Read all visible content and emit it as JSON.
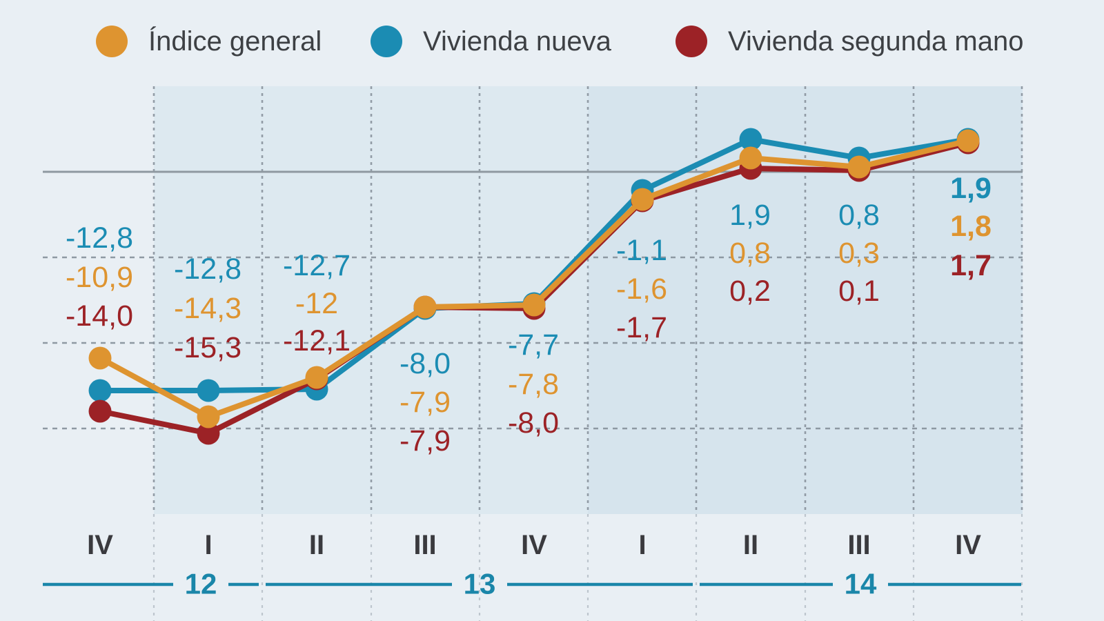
{
  "legend": {
    "items": [
      {
        "label": "Índice general",
        "color": "#de9430"
      },
      {
        "label": "Vivienda nueva",
        "color": "#1b8cb3"
      },
      {
        "label": "Vivienda segunda mano",
        "color": "#9c2226"
      }
    ]
  },
  "chart_data": {
    "type": "line",
    "title": "",
    "quarters": [
      "IV",
      "I",
      "II",
      "III",
      "IV",
      "I",
      "II",
      "III",
      "IV"
    ],
    "years": [
      {
        "label": "12",
        "num_quarters": 1
      },
      {
        "label": "13",
        "num_quarters": 4
      },
      {
        "label": "14",
        "num_quarters": 4
      }
    ],
    "ylim": [
      -20,
      5
    ],
    "grid_step": 5,
    "zero_line": true,
    "legend_position": "top",
    "series": [
      {
        "name": "Vivienda nueva",
        "color": "#1b8cb3",
        "values": [
          -12.8,
          -12.8,
          -12.7,
          -8.0,
          -7.7,
          -1.1,
          1.9,
          0.8,
          1.9
        ],
        "labels": [
          "-12,8",
          "-12,8",
          "-12,7",
          "-8,0",
          "-7,7",
          "-1,1",
          "1,9",
          "0,8",
          "1,9"
        ]
      },
      {
        "name": "Índice general",
        "color": "#de9430",
        "values": [
          -10.9,
          -14.3,
          -12.0,
          -7.9,
          -7.8,
          -1.6,
          0.8,
          0.3,
          1.8
        ],
        "labels": [
          "-10,9",
          "-14,3",
          "-12",
          "-7,9",
          "-7,8",
          "-1,6",
          "0,8",
          "0,3",
          "1,8"
        ]
      },
      {
        "name": "Vivienda segunda mano",
        "color": "#9c2226",
        "values": [
          -14.0,
          -15.3,
          -12.1,
          -7.9,
          -8.0,
          -1.7,
          0.2,
          0.1,
          1.7
        ],
        "labels": [
          "-14,0",
          "-15,3",
          "-12,1",
          "-7,9",
          "-8,0",
          "-1,7",
          "0,2",
          "0,1",
          "1,7"
        ]
      }
    ],
    "axis_colors": {
      "quarter_labels": "#3a3a3e",
      "year_labels": "#1a86a9"
    }
  },
  "palette": {
    "page_bg": "#e9eff4",
    "plot_bg_2013": "#dde9f0",
    "plot_bg_2014": "#d6e4ed",
    "grid": "#8a949e",
    "zero_line": "#8f99a1"
  }
}
